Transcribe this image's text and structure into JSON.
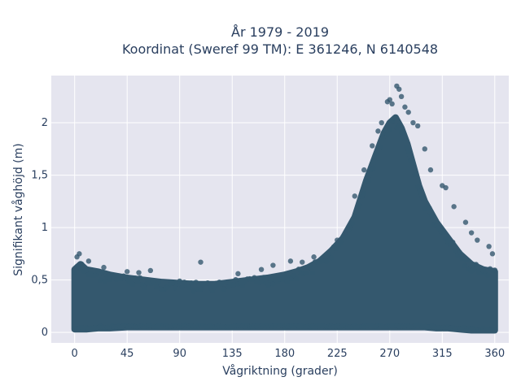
{
  "chart_data": {
    "type": "scatter",
    "title_line1": "År 1979 - 2019",
    "title_line2": "Koordinat (Sweref 99 TM): E 361246, N 6140548",
    "xlabel": "Vågriktning (grader)",
    "ylabel": "Signifikant våghöjd (m)",
    "xlim": [
      -20,
      372
    ],
    "ylim": [
      -0.1,
      2.45
    ],
    "x_ticks": [
      0,
      45,
      90,
      135,
      180,
      225,
      270,
      315,
      360
    ],
    "x_tick_labels": [
      "0",
      "45",
      "90",
      "135",
      "180",
      "225",
      "270",
      "315",
      "360"
    ],
    "y_ticks": [
      0,
      0.5,
      1,
      1.5,
      2
    ],
    "y_tick_labels": [
      "0",
      "0,5",
      "1",
      "1,5",
      "2"
    ],
    "grid": true,
    "marker_color": "#34586e",
    "plot_bg": "#e5e5ef",
    "envelope": {
      "x": [
        0,
        5,
        10,
        20,
        30,
        45,
        60,
        75,
        90,
        105,
        120,
        135,
        150,
        165,
        180,
        190,
        200,
        210,
        220,
        230,
        240,
        250,
        255,
        260,
        265,
        270,
        275,
        280,
        285,
        290,
        295,
        300,
        310,
        320,
        330,
        340,
        350,
        360
      ],
      "y_upper": [
        0.6,
        0.65,
        0.6,
        0.58,
        0.55,
        0.52,
        0.5,
        0.48,
        0.47,
        0.46,
        0.46,
        0.48,
        0.5,
        0.52,
        0.55,
        0.58,
        0.62,
        0.68,
        0.78,
        0.9,
        1.1,
        1.45,
        1.6,
        1.75,
        1.9,
        2.0,
        2.05,
        1.95,
        1.8,
        1.6,
        1.4,
        1.25,
        1.05,
        0.9,
        0.75,
        0.65,
        0.6,
        0.58
      ],
      "y_lower": [
        0.03,
        0.03,
        0.03,
        0.04,
        0.04,
        0.05,
        0.05,
        0.05,
        0.05,
        0.05,
        0.05,
        0.05,
        0.05,
        0.05,
        0.05,
        0.05,
        0.05,
        0.05,
        0.05,
        0.05,
        0.05,
        0.05,
        0.05,
        0.05,
        0.05,
        0.05,
        0.05,
        0.05,
        0.05,
        0.05,
        0.05,
        0.05,
        0.04,
        0.04,
        0.03,
        0.02,
        0.02,
        0.02
      ]
    },
    "outliers": [
      {
        "x": 2,
        "y": 0.72
      },
      {
        "x": 4,
        "y": 0.75
      },
      {
        "x": 12,
        "y": 0.68
      },
      {
        "x": 25,
        "y": 0.62
      },
      {
        "x": 45,
        "y": 0.58
      },
      {
        "x": 55,
        "y": 0.57
      },
      {
        "x": 65,
        "y": 0.59
      },
      {
        "x": 108,
        "y": 0.67
      },
      {
        "x": 140,
        "y": 0.56
      },
      {
        "x": 160,
        "y": 0.6
      },
      {
        "x": 170,
        "y": 0.64
      },
      {
        "x": 185,
        "y": 0.68
      },
      {
        "x": 195,
        "y": 0.67
      },
      {
        "x": 205,
        "y": 0.72
      },
      {
        "x": 225,
        "y": 0.88
      },
      {
        "x": 232,
        "y": 0.95
      },
      {
        "x": 240,
        "y": 1.3
      },
      {
        "x": 248,
        "y": 1.55
      },
      {
        "x": 255,
        "y": 1.78
      },
      {
        "x": 260,
        "y": 1.92
      },
      {
        "x": 263,
        "y": 2.0
      },
      {
        "x": 268,
        "y": 2.2
      },
      {
        "x": 270,
        "y": 2.22
      },
      {
        "x": 272,
        "y": 2.18
      },
      {
        "x": 276,
        "y": 2.35
      },
      {
        "x": 278,
        "y": 2.32
      },
      {
        "x": 280,
        "y": 2.25
      },
      {
        "x": 283,
        "y": 2.15
      },
      {
        "x": 286,
        "y": 2.1
      },
      {
        "x": 290,
        "y": 2.0
      },
      {
        "x": 294,
        "y": 1.97
      },
      {
        "x": 300,
        "y": 1.75
      },
      {
        "x": 305,
        "y": 1.55
      },
      {
        "x": 315,
        "y": 1.4
      },
      {
        "x": 318,
        "y": 1.38
      },
      {
        "x": 325,
        "y": 1.2
      },
      {
        "x": 335,
        "y": 1.05
      },
      {
        "x": 340,
        "y": 0.95
      },
      {
        "x": 345,
        "y": 0.88
      },
      {
        "x": 355,
        "y": 0.82
      },
      {
        "x": 358,
        "y": 0.75
      }
    ]
  }
}
